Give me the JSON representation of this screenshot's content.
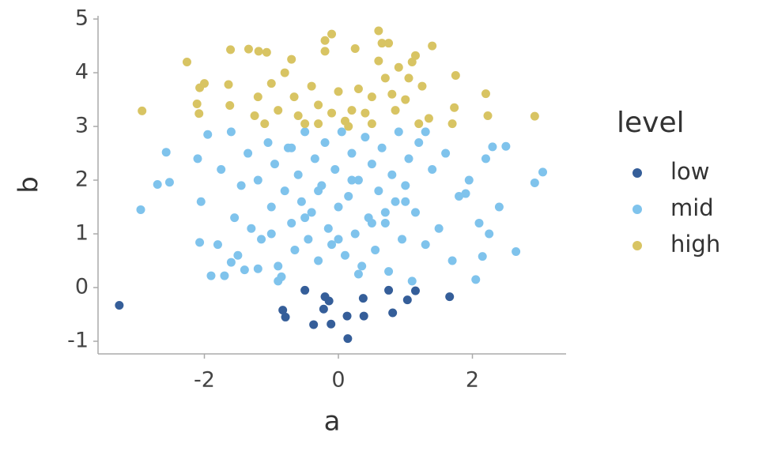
{
  "chart_data": {
    "type": "scatter",
    "x_label": "a",
    "y_label": "b",
    "legend_title": "level",
    "xlim": [
      -3.587,
      3.398
    ],
    "ylim": [
      -1.235,
      5.06
    ],
    "xticks": [
      -2,
      0,
      2
    ],
    "yticks": [
      -1,
      0,
      1,
      2,
      3,
      4,
      5
    ],
    "legend_position": "right",
    "series": [
      {
        "name": "low",
        "color": "#355e99",
        "x": [
          -3.27,
          -0.83,
          -0.79,
          -0.5,
          -0.37,
          -0.22,
          -0.2,
          -0.14,
          -0.11,
          0.13,
          0.14,
          0.37,
          0.38,
          0.75,
          0.81,
          1.03,
          1.15,
          1.66
        ],
        "values": [
          -0.33,
          -0.42,
          -0.55,
          -0.05,
          -0.69,
          -0.4,
          -0.17,
          -0.25,
          -0.68,
          -0.53,
          -0.95,
          -0.2,
          -0.53,
          -0.05,
          -0.47,
          -0.23,
          -0.06,
          -0.17
        ]
      },
      {
        "name": "mid",
        "color": "#7fc3ec",
        "x": [
          -2.95,
          -2.7,
          -2.52,
          -2.57,
          -2.1,
          -2.07,
          -1.9,
          -1.7,
          -1.6,
          -1.4,
          -1.2,
          2.05,
          2.3,
          2.5,
          3.05,
          2.93,
          2.65,
          2.25,
          2.15,
          1.9,
          -0.9,
          -0.85,
          1.1,
          0.3,
          -2.05,
          -1.95,
          -1.8,
          -1.75,
          -1.6,
          -1.55,
          -1.5,
          -1.45,
          -1.35,
          -1.3,
          -1.2,
          -1.15,
          -1.05,
          -1.0,
          -0.95,
          -0.9,
          -0.8,
          -0.75,
          -0.7,
          -0.65,
          -0.6,
          -0.55,
          -0.5,
          -0.45,
          -0.4,
          -0.35,
          -0.3,
          -0.25,
          -0.2,
          -0.15,
          -0.1,
          -0.05,
          0.0,
          0.05,
          0.1,
          0.15,
          0.2,
          0.25,
          0.3,
          0.35,
          0.4,
          0.45,
          0.5,
          0.55,
          0.6,
          0.65,
          0.7,
          0.75,
          0.8,
          0.85,
          0.9,
          0.95,
          1.0,
          1.05,
          1.15,
          1.2,
          1.3,
          1.4,
          1.5,
          1.6,
          1.7,
          1.8,
          1.95,
          2.1,
          2.2,
          2.4,
          -1.0,
          -0.5,
          0.0,
          0.5,
          1.0,
          -0.3,
          0.2,
          0.7,
          -0.7,
          1.3
        ],
        "values": [
          1.45,
          1.92,
          1.96,
          2.52,
          2.4,
          0.84,
          0.22,
          0.22,
          0.47,
          0.33,
          0.35,
          0.15,
          2.62,
          2.63,
          2.15,
          1.95,
          0.67,
          1.0,
          0.58,
          1.75,
          0.12,
          0.2,
          0.12,
          0.25,
          1.6,
          2.85,
          0.8,
          2.2,
          2.9,
          1.3,
          0.6,
          1.9,
          2.5,
          1.1,
          2.0,
          0.9,
          2.7,
          1.5,
          2.3,
          0.4,
          1.8,
          2.6,
          1.2,
          0.7,
          2.1,
          1.6,
          2.9,
          0.9,
          1.4,
          2.4,
          0.5,
          1.9,
          2.7,
          1.1,
          0.8,
          2.2,
          1.5,
          2.9,
          0.6,
          1.7,
          2.5,
          1.0,
          2.0,
          0.4,
          2.8,
          1.3,
          2.3,
          0.7,
          1.8,
          2.6,
          1.2,
          0.3,
          2.1,
          1.6,
          2.9,
          0.9,
          1.9,
          2.4,
          1.4,
          2.7,
          0.8,
          2.2,
          1.1,
          2.5,
          0.5,
          1.7,
          2.0,
          1.2,
          2.4,
          1.5,
          1.0,
          1.3,
          0.9,
          1.2,
          1.6,
          1.8,
          2.0,
          1.4,
          2.6,
          2.9
        ]
      },
      {
        "name": "high",
        "color": "#d8c463",
        "x": [
          -2.93,
          -2.26,
          -2.11,
          -2.08,
          -2.07,
          -2.0,
          -1.61,
          -1.64,
          -1.62,
          -1.34,
          -1.19,
          -1.07,
          -1.2,
          -1.25,
          -1.0,
          -0.9,
          -0.8,
          -0.7,
          -0.66,
          -0.6,
          -0.5,
          -0.4,
          -0.3,
          -0.2,
          -0.2,
          -0.1,
          -0.1,
          0.0,
          0.1,
          0.2,
          0.25,
          0.3,
          0.4,
          0.5,
          0.6,
          0.6,
          0.65,
          0.75,
          0.7,
          0.8,
          0.85,
          0.9,
          1.05,
          1.1,
          1.15,
          1.25,
          1.4,
          1.35,
          1.7,
          1.75,
          1.73,
          2.2,
          2.23,
          2.93,
          0.15,
          -0.3,
          0.5,
          1.0,
          1.2,
          -1.1
        ],
        "values": [
          3.29,
          4.2,
          3.42,
          3.24,
          3.72,
          3.8,
          4.43,
          3.78,
          3.39,
          4.44,
          4.4,
          4.38,
          3.55,
          3.2,
          3.8,
          3.3,
          4.0,
          4.25,
          3.55,
          3.2,
          3.05,
          3.75,
          3.4,
          4.4,
          4.6,
          4.72,
          3.25,
          3.65,
          3.1,
          3.3,
          4.45,
          3.7,
          3.25,
          3.55,
          4.78,
          4.22,
          4.55,
          4.55,
          3.9,
          3.6,
          3.3,
          4.1,
          3.9,
          4.2,
          4.32,
          3.75,
          4.5,
          3.15,
          3.05,
          3.95,
          3.35,
          3.61,
          3.2,
          3.19,
          3.0,
          3.05,
          3.05,
          3.5,
          3.05,
          3.05
        ]
      }
    ]
  }
}
